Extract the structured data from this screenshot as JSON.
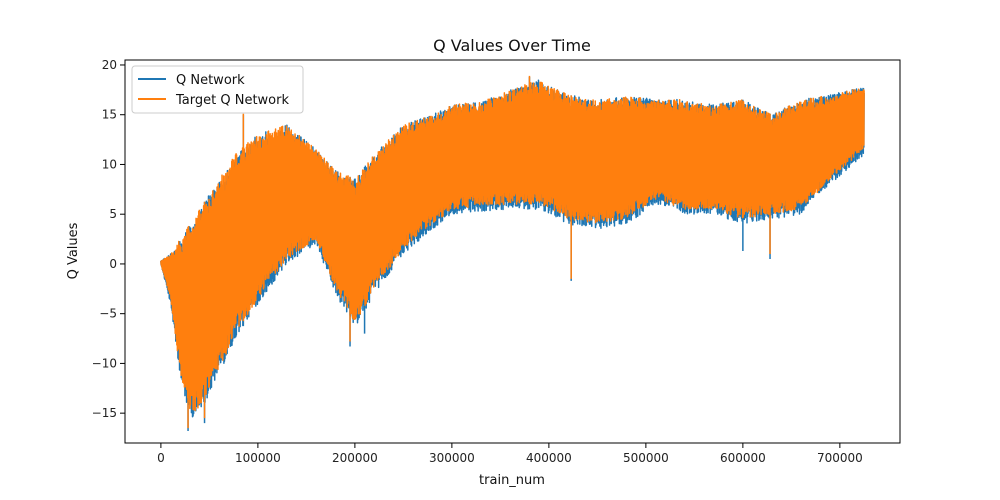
{
  "chart_data": {
    "type": "line",
    "title": "Q Values Over Time",
    "xlabel": "train_num",
    "ylabel": "Q Values",
    "xlim": [
      -37000,
      762000
    ],
    "ylim": [
      -18,
      20.5
    ],
    "xticks": [
      0,
      100000,
      200000,
      300000,
      400000,
      500000,
      600000,
      700000
    ],
    "xtick_labels": [
      "0",
      "100000",
      "200000",
      "300000",
      "400000",
      "500000",
      "600000",
      "700000"
    ],
    "yticks": [
      -15,
      -10,
      -5,
      0,
      5,
      10,
      15,
      20
    ],
    "ytick_labels": [
      "−15",
      "−10",
      "−5",
      "0",
      "5",
      "10",
      "15",
      "20"
    ],
    "grid": false,
    "legend_position": "top-left",
    "series": [
      {
        "name": "Q Network",
        "color": "#1f77b4",
        "envelope": {
          "x": [
            0,
            10000,
            20000,
            30000,
            40000,
            50000,
            60000,
            80000,
            100000,
            130000,
            160000,
            180000,
            200000,
            220000,
            250000,
            280000,
            300000,
            330000,
            360000,
            390000,
            420000,
            450000,
            480000,
            510000,
            540000,
            570000,
            600000,
            630000,
            660000,
            690000,
            725000
          ],
          "upper": [
            0.3,
            1.0,
            2.5,
            4.0,
            5.5,
            7.0,
            8.5,
            11.5,
            13.0,
            14.0,
            11.5,
            9.5,
            8.5,
            11.0,
            14.0,
            15.0,
            16.0,
            16.3,
            17.5,
            18.5,
            17.0,
            16.5,
            16.8,
            16.6,
            16.5,
            16.0,
            16.5,
            15.0,
            16.5,
            17.0,
            17.8
          ],
          "lower": [
            0.0,
            -4.0,
            -11.5,
            -15.5,
            -15.0,
            -13.0,
            -11.0,
            -7.0,
            -4.0,
            0.0,
            2.0,
            -3.0,
            -6.5,
            -3.0,
            1.0,
            3.5,
            5.0,
            5.3,
            5.5,
            5.5,
            4.0,
            3.5,
            4.0,
            6.0,
            5.0,
            5.0,
            4.0,
            4.5,
            5.0,
            8.0,
            11.0
          ],
          "low_spikes": [
            [
              28000,
              -16.8
            ],
            [
              45000,
              -16.0
            ],
            [
              195000,
              -8.3
            ],
            [
              210000,
              -7.0
            ],
            [
              423000,
              -1.7
            ],
            [
              600000,
              1.3
            ],
            [
              628000,
              0.5
            ]
          ],
          "high_spikes": [
            [
              85000,
              15.0
            ],
            [
              380000,
              18.8
            ]
          ]
        }
      },
      {
        "name": "Target Q Network",
        "color": "#ff7f0e",
        "envelope": {
          "x": [
            0,
            10000,
            20000,
            30000,
            40000,
            50000,
            60000,
            80000,
            100000,
            130000,
            160000,
            180000,
            200000,
            220000,
            250000,
            280000,
            300000,
            330000,
            360000,
            390000,
            420000,
            450000,
            480000,
            510000,
            540000,
            570000,
            600000,
            630000,
            660000,
            690000,
            725000
          ],
          "upper": [
            0.3,
            1.0,
            2.5,
            4.0,
            5.5,
            7.0,
            8.5,
            11.5,
            13.0,
            14.0,
            11.5,
            9.5,
            8.5,
            11.0,
            14.0,
            15.0,
            16.0,
            16.3,
            17.5,
            18.5,
            17.0,
            16.5,
            16.8,
            16.6,
            16.5,
            16.0,
            16.5,
            15.0,
            16.5,
            17.0,
            17.8
          ],
          "lower": [
            0.0,
            -3.5,
            -11.0,
            -15.0,
            -14.5,
            -12.5,
            -10.5,
            -6.5,
            -3.5,
            0.5,
            2.5,
            -2.5,
            -6.0,
            -2.5,
            1.5,
            4.0,
            5.5,
            5.8,
            6.0,
            6.0,
            4.5,
            4.0,
            4.5,
            6.5,
            5.5,
            5.5,
            4.5,
            5.0,
            5.5,
            8.5,
            11.5
          ],
          "low_spikes": [
            [
              28000,
              -16.5
            ],
            [
              45000,
              -15.5
            ],
            [
              195000,
              -7.8
            ],
            [
              423000,
              -1.5
            ],
            [
              628000,
              1.0
            ]
          ],
          "high_spikes": [
            [
              85000,
              15.1
            ],
            [
              380000,
              18.9
            ]
          ]
        }
      }
    ]
  }
}
